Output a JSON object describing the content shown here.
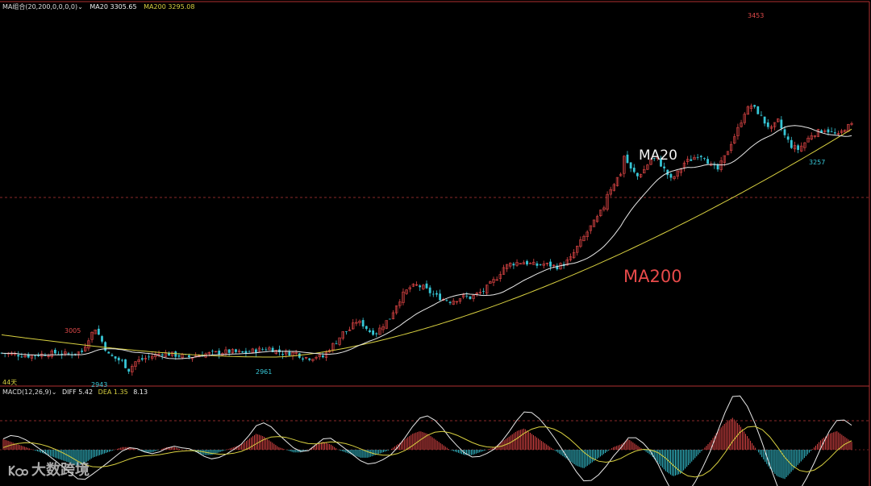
{
  "header_main": {
    "indicator": "MA组合(20,200,0,0,0,0)",
    "ma20_label": "MA20",
    "ma20_value": "3305.65",
    "ma200_label": "MA200",
    "ma200_value": "3295.08"
  },
  "header_macd": {
    "indicator": "MACD(12,26,9)",
    "diff_label": "DIFF",
    "diff_value": "5.42",
    "dea_label": "DEA",
    "dea_value": "1.35",
    "macd_value": "8.13"
  },
  "bottom_left_label": "44天",
  "annotations": {
    "high_left": "3005",
    "low_left": "2943",
    "low_mid": "2961",
    "high_right": "3453",
    "low_right": "3257",
    "ma20_tag": "MA20",
    "ma200_tag": "MA200"
  },
  "watermark": "大数跨境",
  "colors": {
    "up": "#e04646",
    "down": "#36c6d6",
    "ma20": "#e8e8e8",
    "ma200": "#d8d040",
    "frame": "#b03030"
  },
  "chart_data": [
    {
      "type": "candlestick",
      "title": "",
      "series": [
        {
          "name": "MA20",
          "value": 3305.65
        },
        {
          "name": "MA200",
          "value": 3295.08
        }
      ],
      "price_range": [
        2925,
        3470
      ],
      "close_path": [
        [
          0,
          2968
        ],
        [
          4,
          2966
        ],
        [
          8,
          2964
        ],
        [
          12,
          2966
        ],
        [
          16,
          2968
        ],
        [
          20,
          2966
        ],
        [
          24,
          2970
        ],
        [
          26,
          2990
        ],
        [
          28,
          3005
        ],
        [
          30,
          2985
        ],
        [
          32,
          2965
        ],
        [
          36,
          2955
        ],
        [
          38,
          2943
        ],
        [
          40,
          2955
        ],
        [
          44,
          2962
        ],
        [
          48,
          2968
        ],
        [
          52,
          2965
        ],
        [
          56,
          2962
        ],
        [
          60,
          2966
        ],
        [
          64,
          2968
        ],
        [
          68,
          2970
        ],
        [
          72,
          2968
        ],
        [
          76,
          2972
        ],
        [
          80,
          2975
        ],
        [
          84,
          2968
        ],
        [
          88,
          2968
        ],
        [
          90,
          2962
        ],
        [
          92,
          2961
        ],
        [
          94,
          2963
        ],
        [
          96,
          2962
        ],
        [
          98,
          2975
        ],
        [
          100,
          2985
        ],
        [
          102,
          2998
        ],
        [
          104,
          3003
        ],
        [
          106,
          3015
        ],
        [
          108,
          3010
        ],
        [
          110,
          3000
        ],
        [
          112,
          2998
        ],
        [
          114,
          3010
        ],
        [
          116,
          3020
        ],
        [
          118,
          3040
        ],
        [
          120,
          3055
        ],
        [
          122,
          3065
        ],
        [
          124,
          3068
        ],
        [
          126,
          3065
        ],
        [
          128,
          3058
        ],
        [
          130,
          3052
        ],
        [
          132,
          3048
        ],
        [
          134,
          3045
        ],
        [
          136,
          3048
        ],
        [
          138,
          3052
        ],
        [
          140,
          3050
        ],
        [
          142,
          3055
        ],
        [
          144,
          3060
        ],
        [
          146,
          3070
        ],
        [
          148,
          3080
        ],
        [
          150,
          3095
        ],
        [
          152,
          3100
        ],
        [
          154,
          3102
        ],
        [
          156,
          3103
        ],
        [
          158,
          3100
        ],
        [
          160,
          3098
        ],
        [
          162,
          3100
        ],
        [
          164,
          3098
        ],
        [
          166,
          3096
        ],
        [
          168,
          3100
        ],
        [
          170,
          3108
        ],
        [
          172,
          3125
        ],
        [
          174,
          3140
        ],
        [
          176,
          3155
        ],
        [
          178,
          3168
        ],
        [
          180,
          3185
        ],
        [
          181,
          3205
        ],
        [
          183,
          3220
        ],
        [
          185,
          3235
        ],
        [
          186,
          3260
        ],
        [
          188,
          3240
        ],
        [
          190,
          3230
        ],
        [
          192,
          3240
        ],
        [
          194,
          3255
        ],
        [
          196,
          3255
        ],
        [
          198,
          3240
        ],
        [
          200,
          3225
        ],
        [
          202,
          3235
        ],
        [
          204,
          3250
        ],
        [
          206,
          3255
        ],
        [
          208,
          3262
        ],
        [
          210,
          3260
        ],
        [
          212,
          3245
        ],
        [
          214,
          3240
        ],
        [
          216,
          3258
        ],
        [
          218,
          3280
        ],
        [
          220,
          3300
        ],
        [
          222,
          3325
        ],
        [
          224,
          3335
        ],
        [
          226,
          3325
        ],
        [
          228,
          3310
        ],
        [
          230,
          3300
        ],
        [
          232,
          3312
        ],
        [
          234,
          3290
        ],
        [
          236,
          3275
        ],
        [
          238,
          3270
        ],
        [
          240,
          3280
        ],
        [
          242,
          3292
        ],
        [
          244,
          3296
        ],
        [
          246,
          3300
        ],
        [
          248,
          3295
        ],
        [
          250,
          3290
        ],
        [
          252,
          3302
        ],
        [
          254,
          3306
        ]
      ],
      "highs": [
        {
          "label": "3005",
          "value": 3005
        },
        {
          "label": "3453",
          "value": 3453
        }
      ],
      "lows": [
        {
          "label": "2943",
          "value": 2943
        },
        {
          "label": "2961",
          "value": 2961
        },
        {
          "label": "3257",
          "value": 3257
        }
      ],
      "annotations": [
        "MA20",
        "MA200"
      ],
      "grid": false
    },
    {
      "type": "bar",
      "title": "MACD(12,26,9)",
      "series": [
        {
          "name": "DIFF",
          "value": 5.42
        },
        {
          "name": "DEA",
          "value": 1.35
        },
        {
          "name": "MACD",
          "value": 8.13
        }
      ],
      "histogram": [
        4,
        3,
        2,
        1,
        0,
        -1,
        -2,
        -3,
        -4,
        -5,
        -6,
        -5,
        -3,
        -2,
        -1,
        0,
        1,
        1,
        0,
        -1,
        -1,
        0,
        1,
        1,
        0,
        0,
        -1,
        -2,
        -2,
        -1,
        0,
        1,
        2,
        4,
        6,
        5,
        3,
        1,
        0,
        -1,
        -1,
        0,
        2,
        3,
        2,
        0,
        -1,
        -2,
        -3,
        -3,
        -2,
        -1,
        0,
        2,
        4,
        6,
        7,
        6,
        4,
        2,
        0,
        -1,
        -2,
        -2,
        -1,
        0,
        1,
        3,
        5,
        7,
        8,
        6,
        4,
        2,
        0,
        -2,
        -4,
        -6,
        -7,
        -5,
        -3,
        -1,
        1,
        2,
        4,
        2,
        0,
        -2,
        -5,
        -8,
        -10,
        -9,
        -6,
        -3,
        0,
        3,
        7,
        10,
        12,
        9,
        5,
        1,
        -3,
        -7,
        -10,
        -11,
        -8,
        -5,
        -2,
        1,
        4,
        6,
        7,
        5,
        3
      ]
    }
  ]
}
